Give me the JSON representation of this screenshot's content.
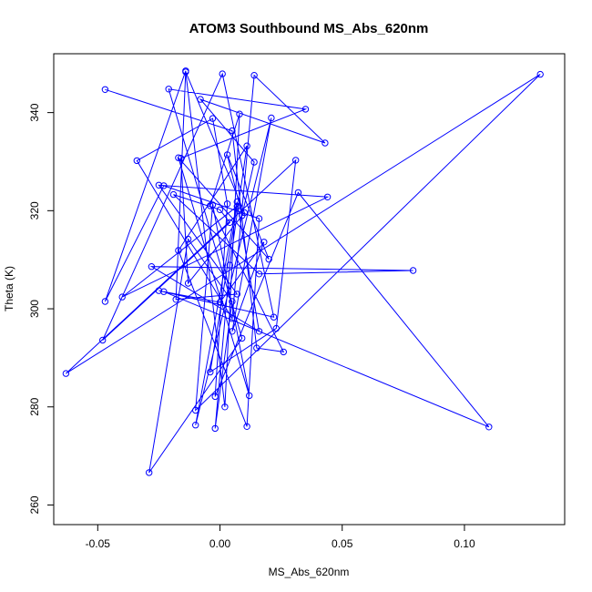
{
  "chart_data": {
    "type": "scatter",
    "title": "ATOM3 Southbound MS_Abs_620nm",
    "xlabel": "MS_Abs_620nm",
    "ylabel": "Theta (K)",
    "xlim": [
      -0.068,
      0.141
    ],
    "ylim": [
      256,
      352
    ],
    "x_ticks": [
      -0.05,
      0.0,
      0.05,
      0.1
    ],
    "x_tick_labels": [
      "-0.05",
      "0.00",
      "0.05",
      "0.10"
    ],
    "y_ticks": [
      260,
      280,
      300,
      320,
      340
    ],
    "y_tick_labels": [
      "260",
      "280",
      "300",
      "320",
      "340"
    ],
    "grid": false,
    "legend": "none",
    "connected": true,
    "marker": "open-circle",
    "series_color": "#0000ff",
    "points": [
      {
        "x": -0.047,
        "y": 344.7
      },
      {
        "x": 0.005,
        "y": 336.3
      },
      {
        "x": 0.015,
        "y": 292.0
      },
      {
        "x": 0.026,
        "y": 291.2
      },
      {
        "x": -0.004,
        "y": 321.0
      },
      {
        "x": 0.008,
        "y": 339.7
      },
      {
        "x": 0.002,
        "y": 280.0
      },
      {
        "x": -0.014,
        "y": 348.3
      },
      {
        "x": 0.01,
        "y": 319.6
      },
      {
        "x": -0.013,
        "y": 305.2
      },
      {
        "x": -0.016,
        "y": 330.7
      },
      {
        "x": 0.035,
        "y": 340.7
      },
      {
        "x": -0.021,
        "y": 344.8
      },
      {
        "x": 0.009,
        "y": 294.0
      },
      {
        "x": -0.029,
        "y": 266.6
      },
      {
        "x": -0.013,
        "y": 314.2
      },
      {
        "x": 0.005,
        "y": 301.5
      },
      {
        "x": -0.002,
        "y": 275.6
      },
      {
        "x": 0.004,
        "y": 308.9
      },
      {
        "x": 0.011,
        "y": 333.2
      },
      {
        "x": -0.017,
        "y": 311.9
      },
      {
        "x": 0.011,
        "y": 276.0
      },
      {
        "x": 0.016,
        "y": 318.4
      },
      {
        "x": -0.023,
        "y": 325.1
      },
      {
        "x": -0.047,
        "y": 301.5
      },
      {
        "x": -0.014,
        "y": 348.5
      },
      {
        "x": -0.018,
        "y": 301.9
      },
      {
        "x": 0.007,
        "y": 303.0
      },
      {
        "x": -0.025,
        "y": 325.2
      },
      {
        "x": 0.044,
        "y": 322.8
      },
      {
        "x": -0.04,
        "y": 302.4
      },
      {
        "x": 0.007,
        "y": 320.9
      },
      {
        "x": -0.004,
        "y": 287.1
      },
      {
        "x": 0.023,
        "y": 296.0
      },
      {
        "x": 0.031,
        "y": 330.3
      },
      {
        "x": -0.063,
        "y": 286.8
      },
      {
        "x": 0.131,
        "y": 347.8
      },
      {
        "x": -0.01,
        "y": 279.3
      },
      {
        "x": -0.003,
        "y": 321.2
      },
      {
        "x": 0.012,
        "y": 282.3
      },
      {
        "x": -0.017,
        "y": 330.8
      },
      {
        "x": 0.02,
        "y": 310.1
      },
      {
        "x": 0.003,
        "y": 331.4
      },
      {
        "x": 0.009,
        "y": 319.0
      },
      {
        "x": 0.014,
        "y": 329.9
      },
      {
        "x": -0.008,
        "y": 342.7
      },
      {
        "x": 0.043,
        "y": 333.8
      },
      {
        "x": 0.014,
        "y": 347.6
      },
      {
        "x": 0.005,
        "y": 298.0
      },
      {
        "x": -0.034,
        "y": 330.2
      },
      {
        "x": -0.003,
        "y": 338.8
      },
      {
        "x": 0.003,
        "y": 321.4
      },
      {
        "x": -0.002,
        "y": 282.1
      },
      {
        "x": 0.032,
        "y": 323.7
      },
      {
        "x": 0.11,
        "y": 275.9
      },
      {
        "x": -0.023,
        "y": 303.5
      },
      {
        "x": 0.0,
        "y": 301.3
      },
      {
        "x": 0.018,
        "y": 313.6
      },
      {
        "x": 0.005,
        "y": 295.4
      },
      {
        "x": 0.021,
        "y": 338.9
      },
      {
        "x": -0.01,
        "y": 276.3
      },
      {
        "x": 0.007,
        "y": 321.8
      },
      {
        "x": 0.016,
        "y": 295.4
      },
      {
        "x": -0.028,
        "y": 308.6
      },
      {
        "x": 0.079,
        "y": 307.8
      },
      {
        "x": 0.016,
        "y": 307.1
      },
      {
        "x": -0.019,
        "y": 323.3
      },
      {
        "x": 0.0,
        "y": 320.2
      },
      {
        "x": 0.004,
        "y": 317.6
      },
      {
        "x": -0.048,
        "y": 293.6
      },
      {
        "x": 0.001,
        "y": 347.9
      },
      {
        "x": 0.022,
        "y": 298.3
      },
      {
        "x": -0.025,
        "y": 303.7
      }
    ]
  }
}
